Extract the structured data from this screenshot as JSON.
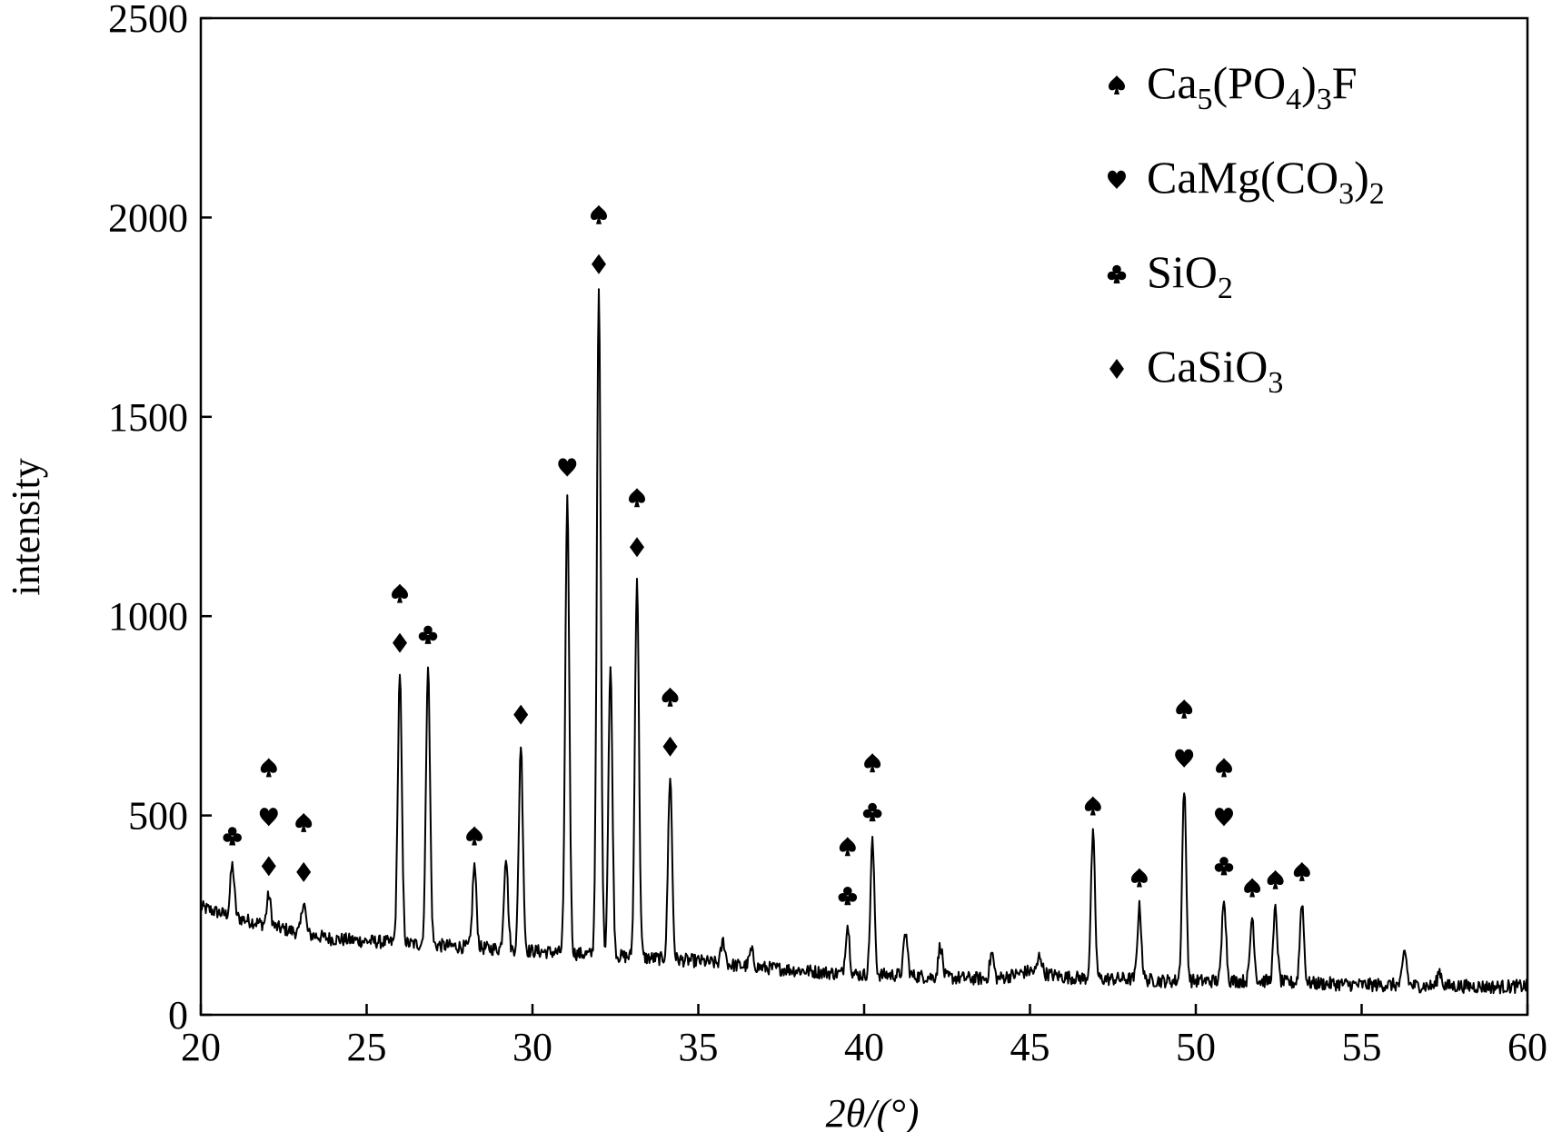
{
  "chart_data": {
    "type": "line",
    "xlabel": "2θ/(°)",
    "ylabel": "intensity",
    "xlim": [
      20,
      60
    ],
    "ylim": [
      0,
      2500
    ],
    "xticks": [
      "20",
      "25",
      "30",
      "35",
      "40",
      "45",
      "50",
      "55",
      "60"
    ],
    "yticks": [
      "0",
      "500",
      "1000",
      "1500",
      "2000",
      "2500"
    ],
    "grid": false,
    "legend_position": "top-right",
    "legend": [
      {
        "marker": "spade",
        "label": "Ca5(PO4)3F",
        "base": "Ca",
        "parts": [
          [
            "5",
            "sub"
          ],
          [
            "(PO",
            ""
          ],
          [
            "4",
            "sub"
          ],
          [
            ")",
            ""
          ],
          [
            "3",
            "sub"
          ],
          [
            "F",
            ""
          ]
        ]
      },
      {
        "marker": "heart",
        "label": "CaMg(CO3)2",
        "base": "CaMg(CO",
        "parts": [
          [
            "3",
            "sub"
          ],
          [
            ")",
            ""
          ],
          [
            "2",
            "sub"
          ]
        ]
      },
      {
        "marker": "club",
        "label": "SiO2",
        "base": "SiO",
        "parts": [
          [
            "2",
            "sub"
          ]
        ]
      },
      {
        "marker": "diamond",
        "label": "CaSiO3",
        "base": "CaSiO",
        "parts": [
          [
            "3",
            "sub"
          ]
        ]
      }
    ],
    "baseline": [
      [
        20,
        270
      ],
      [
        21,
        245
      ],
      [
        22,
        225
      ],
      [
        23,
        205
      ],
      [
        24,
        190
      ],
      [
        25,
        185
      ],
      [
        26,
        180
      ],
      [
        27,
        175
      ],
      [
        28,
        170
      ],
      [
        29,
        165
      ],
      [
        30,
        160
      ],
      [
        31,
        155
      ],
      [
        32,
        150
      ],
      [
        33,
        145
      ],
      [
        34,
        140
      ],
      [
        35,
        135
      ],
      [
        36,
        125
      ],
      [
        37,
        118
      ],
      [
        38,
        112
      ],
      [
        39,
        105
      ],
      [
        40,
        100
      ],
      [
        41,
        100
      ],
      [
        42,
        95
      ],
      [
        43,
        92
      ],
      [
        44,
        90
      ],
      [
        45,
        110
      ],
      [
        46,
        95
      ],
      [
        47,
        90
      ],
      [
        48,
        90
      ],
      [
        49,
        85
      ],
      [
        50,
        85
      ],
      [
        51,
        85
      ],
      [
        52,
        85
      ],
      [
        53,
        80
      ],
      [
        54,
        78
      ],
      [
        55,
        75
      ],
      [
        56,
        75
      ],
      [
        57,
        72
      ],
      [
        58,
        72
      ],
      [
        59,
        70
      ],
      [
        60,
        72
      ]
    ],
    "peaks": [
      {
        "x": 20.95,
        "y": 375,
        "markers": [
          "club"
        ]
      },
      {
        "x": 22.05,
        "y": 300,
        "markers": [
          "spade",
          "heart",
          "diamond"
        ]
      },
      {
        "x": 23.1,
        "y": 285,
        "markers": [
          "spade",
          "diamond"
        ]
      },
      {
        "x": 26.0,
        "y": 860,
        "markers": [
          "spade",
          "diamond"
        ]
      },
      {
        "x": 26.85,
        "y": 880,
        "markers": [
          "club"
        ]
      },
      {
        "x": 28.25,
        "y": 375,
        "markers": [
          "spade"
        ]
      },
      {
        "x": 29.2,
        "y": 400,
        "markers": []
      },
      {
        "x": 29.65,
        "y": 680,
        "markers": [
          "diamond"
        ]
      },
      {
        "x": 31.05,
        "y": 1300,
        "markers": [
          "heart"
        ]
      },
      {
        "x": 32.0,
        "y": 1810,
        "markers": [
          "spade",
          "diamond"
        ]
      },
      {
        "x": 32.35,
        "y": 870,
        "markers": []
      },
      {
        "x": 33.15,
        "y": 1100,
        "markers": [
          "spade",
          "diamond"
        ]
      },
      {
        "x": 34.15,
        "y": 600,
        "markers": [
          "spade",
          "diamond"
        ]
      },
      {
        "x": 35.75,
        "y": 185,
        "markers": []
      },
      {
        "x": 36.6,
        "y": 160,
        "markers": []
      },
      {
        "x": 39.5,
        "y": 225,
        "markers": [
          "spade",
          "club"
        ]
      },
      {
        "x": 40.25,
        "y": 435,
        "markers": [
          "spade",
          "club"
        ]
      },
      {
        "x": 41.25,
        "y": 205,
        "markers": []
      },
      {
        "x": 42.3,
        "y": 175,
        "markers": []
      },
      {
        "x": 43.85,
        "y": 155,
        "markers": []
      },
      {
        "x": 45.3,
        "y": 150,
        "markers": []
      },
      {
        "x": 46.9,
        "y": 450,
        "markers": [
          "spade"
        ]
      },
      {
        "x": 48.3,
        "y": 270,
        "markers": [
          "spade"
        ]
      },
      {
        "x": 49.65,
        "y": 570,
        "markers": [
          "spade",
          "heart"
        ]
      },
      {
        "x": 50.85,
        "y": 300,
        "markers": [
          "spade",
          "heart",
          "club"
        ]
      },
      {
        "x": 51.7,
        "y": 245,
        "markers": [
          "spade"
        ]
      },
      {
        "x": 52.4,
        "y": 265,
        "markers": [
          "spade"
        ]
      },
      {
        "x": 53.2,
        "y": 285,
        "markers": [
          "spade"
        ]
      },
      {
        "x": 56.3,
        "y": 160,
        "markers": []
      },
      {
        "x": 57.35,
        "y": 110,
        "markers": []
      }
    ]
  }
}
